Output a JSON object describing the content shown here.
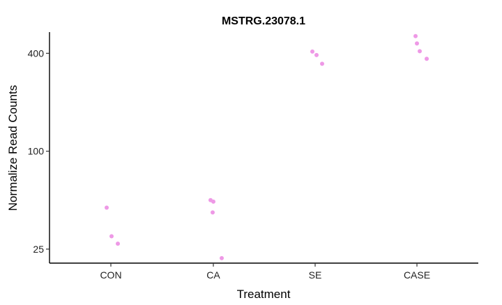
{
  "chart_data": {
    "type": "scatter",
    "title": "MSTRG.23078.1",
    "xlabel": "Treatment",
    "ylabel": "Normalize Read Counts",
    "categories": [
      "CON",
      "CA",
      "SE",
      "CASE"
    ],
    "y_scale": "log2",
    "y_ticks": [
      25,
      100,
      400
    ],
    "y_tick_labels": [
      "25",
      "100",
      "400"
    ],
    "ylim": [
      20.5,
      540
    ],
    "grid": false,
    "legend": "none",
    "point_color": "#ee99e6",
    "points": [
      {
        "category": "CON",
        "y": 45
      },
      {
        "category": "CON",
        "y": 30
      },
      {
        "category": "CON",
        "y": 27
      },
      {
        "category": "CA",
        "y": 50
      },
      {
        "category": "CA",
        "y": 49
      },
      {
        "category": "CA",
        "y": 42
      },
      {
        "category": "CA",
        "y": 22
      },
      {
        "category": "SE",
        "y": 410
      },
      {
        "category": "SE",
        "y": 390
      },
      {
        "category": "SE",
        "y": 345
      },
      {
        "category": "CASE",
        "y": 510
      },
      {
        "category": "CASE",
        "y": 460
      },
      {
        "category": "CASE",
        "y": 412
      },
      {
        "category": "CASE",
        "y": 370
      }
    ]
  }
}
